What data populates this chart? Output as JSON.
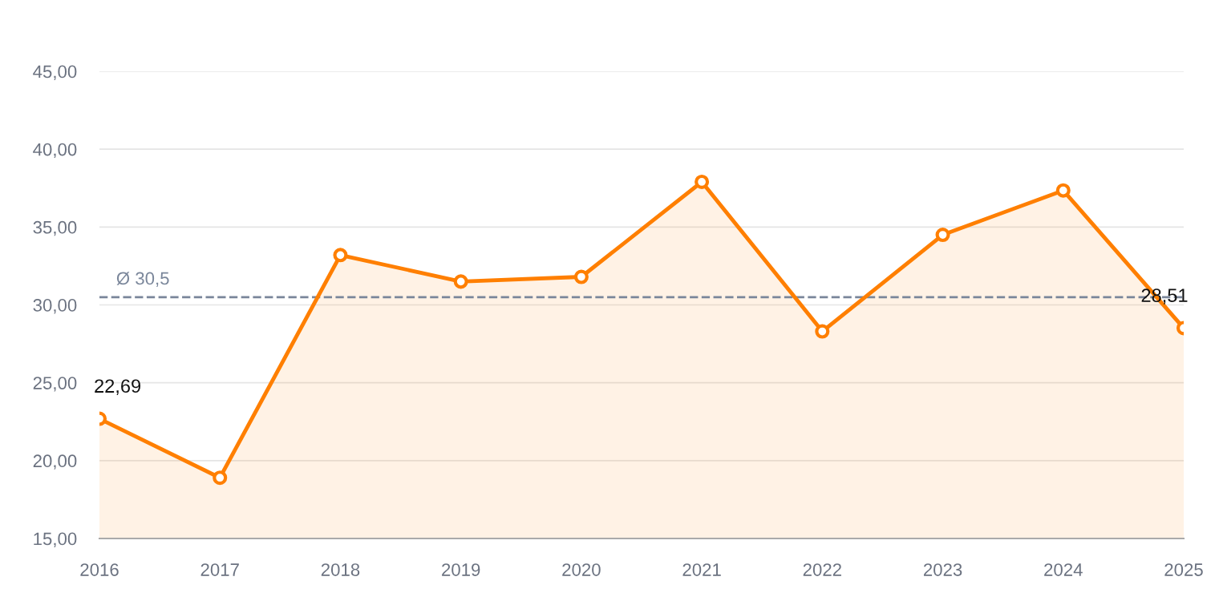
{
  "chart_data": {
    "type": "area",
    "categories": [
      "2016",
      "2017",
      "2018",
      "2019",
      "2020",
      "2021",
      "2022",
      "2023",
      "2024",
      "2025"
    ],
    "series": [
      {
        "color": "#ff7f00",
        "values": [
          22.69,
          18.9,
          33.2,
          31.5,
          31.8,
          37.9,
          28.3,
          34.5,
          37.35,
          28.51
        ],
        "value_labels": [
          "22,69",
          null,
          null,
          null,
          null,
          null,
          null,
          null,
          null,
          "28,51"
        ]
      }
    ],
    "ylim": [
      15,
      45
    ],
    "yticks": [
      {
        "value": 15,
        "label": "15,00"
      },
      {
        "value": 20,
        "label": "20,00"
      },
      {
        "value": 25,
        "label": "25,00"
      },
      {
        "value": 30,
        "label": "30,00"
      },
      {
        "value": 35,
        "label": "35,00"
      },
      {
        "value": 40,
        "label": "40,00"
      },
      {
        "value": 45,
        "label": "45,00"
      }
    ],
    "ref_lines": [
      {
        "axis": "y",
        "value": 30.5,
        "label": "Ø 30,5",
        "color": "#7a869a",
        "line_style": "dashed"
      }
    ],
    "grid": "y",
    "marker": "circle",
    "line_style": "solid",
    "legend": false
  }
}
